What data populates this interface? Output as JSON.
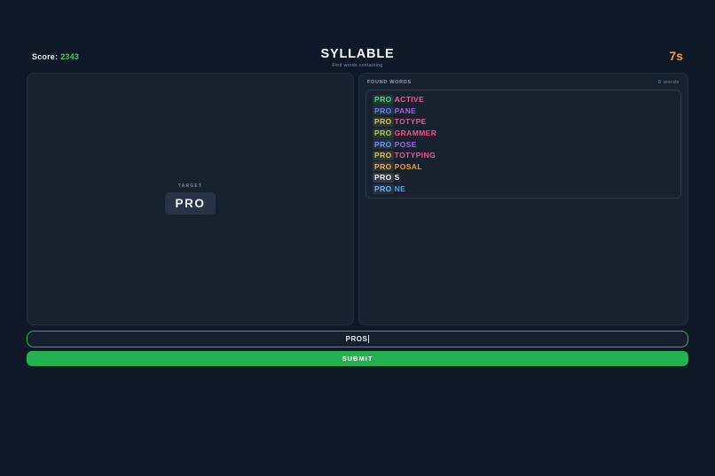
{
  "colors": {
    "score": "#2fd06a",
    "timer": "#f0a030",
    "accent_green": "#24b251",
    "input_border_green": "#23b553"
  },
  "header": {
    "score_label": "Score:",
    "score_value": "2343",
    "title": "SYLLABLE",
    "subtitle": "Find words containing",
    "timer": "7s"
  },
  "target": {
    "label": "TARGET",
    "syllable": "PRO"
  },
  "found_words": {
    "title": "FOUND WORDS",
    "count": "9 words",
    "words": [
      {
        "prefix": "PRO",
        "suffix": "ACTIVE",
        "prefix_color": "#52d97b",
        "suffix_color": "#f25d93"
      },
      {
        "prefix": "PRO",
        "suffix": "PANE",
        "prefix_color": "#5d8ef2",
        "suffix_color": "#a55cf5"
      },
      {
        "prefix": "PRO",
        "suffix": "TOTYPE",
        "prefix_color": "#d5c84f",
        "suffix_color": "#f0509b"
      },
      {
        "prefix": "PRO",
        "suffix": "GRAMMER",
        "prefix_color": "#a9d14e",
        "suffix_color": "#ef5585"
      },
      {
        "prefix": "PRO",
        "suffix": "POSE",
        "prefix_color": "#6d9df5",
        "suffix_color": "#9f63f2"
      },
      {
        "prefix": "PRO",
        "suffix": "TOTYPING",
        "prefix_color": "#d5c84f",
        "suffix_color": "#f0509b"
      },
      {
        "prefix": "PRO",
        "suffix": "POSAL",
        "prefix_color": "#e5b94d",
        "suffix_color": "#f59a23"
      },
      {
        "prefix": "PRO",
        "suffix": "S",
        "prefix_color": "#eef2f7",
        "suffix_color": "#eef2f7"
      },
      {
        "prefix": "PRO",
        "suffix": "NE",
        "prefix_color": "#6fb7ea",
        "suffix_color": "#4aa3f5"
      }
    ]
  },
  "input": {
    "value": "PROS"
  },
  "submit_label": "SUBMIT"
}
